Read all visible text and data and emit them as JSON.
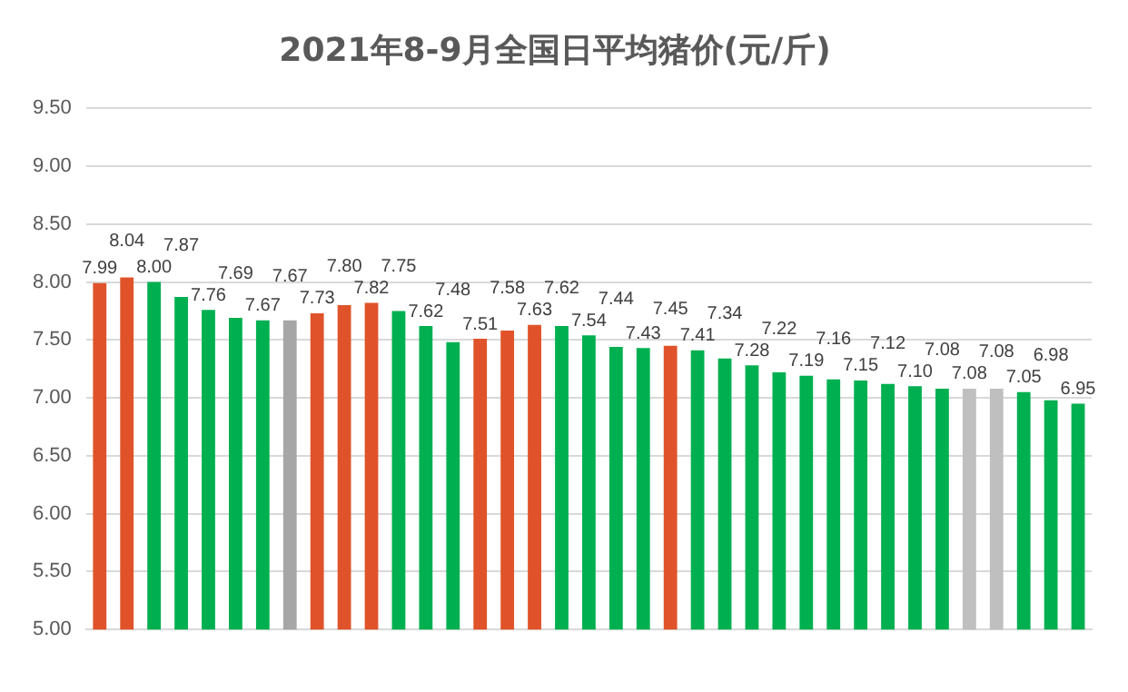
{
  "chart_data": {
    "type": "bar",
    "title": "2021年8-9月全国日平均猪价(元/斤)",
    "categories": [
      null,
      null,
      null,
      null,
      null,
      null,
      null,
      null,
      null,
      null,
      null,
      null,
      null,
      null,
      null,
      null,
      null,
      null,
      null,
      null,
      null,
      null,
      null,
      null,
      null,
      null,
      null,
      null,
      null,
      null,
      null,
      null,
      null,
      null,
      null,
      null,
      null
    ],
    "values": [
      7.99,
      8.04,
      8.0,
      7.87,
      7.76,
      7.69,
      7.67,
      7.67,
      7.73,
      7.8,
      7.82,
      7.75,
      7.62,
      7.48,
      7.51,
      7.58,
      7.63,
      7.62,
      7.54,
      7.44,
      7.43,
      7.45,
      7.41,
      7.34,
      7.28,
      7.22,
      7.19,
      7.16,
      7.15,
      7.12,
      7.1,
      7.08,
      7.08,
      7.08,
      7.05,
      6.98,
      6.95
    ],
    "colors": [
      "#e0532a",
      "#e0532a",
      "#00b050",
      "#00b050",
      "#00b050",
      "#00b050",
      "#00b050",
      "#a6a6a6",
      "#e0532a",
      "#e0532a",
      "#e0532a",
      "#00b050",
      "#00b050",
      "#00b050",
      "#e0532a",
      "#e0532a",
      "#e0532a",
      "#00b050",
      "#00b050",
      "#00b050",
      "#00b050",
      "#e0532a",
      "#00b050",
      "#00b050",
      "#00b050",
      "#00b050",
      "#00b050",
      "#00b050",
      "#00b050",
      "#00b050",
      "#00b050",
      "#00b050",
      "#bfbfbf",
      "#bfbfbf",
      "#00b050",
      "#00b050",
      "#00b050"
    ],
    "ylim": [
      5.0,
      9.5
    ],
    "yticks": [
      {
        "value": 5,
        "label": "5.00"
      },
      {
        "value": 5.5,
        "label": "5.50"
      },
      {
        "value": 6,
        "label": "6.00"
      },
      {
        "value": 6.5,
        "label": "6.50"
      },
      {
        "value": 7,
        "label": "7.00"
      },
      {
        "value": 7.5,
        "label": "7.50"
      },
      {
        "value": 8,
        "label": "8.00"
      },
      {
        "value": 8.5,
        "label": "8.50"
      },
      {
        "value": 9,
        "label": "9.00"
      },
      {
        "value": 9.5,
        "label": "9.50"
      }
    ],
    "value_labels": [
      "7.99",
      "8.04",
      "8.00",
      "7.87",
      "7.76",
      "7.69",
      "7.67",
      "7.67",
      "7.73",
      "7.80",
      "7.82",
      "7.75",
      "7.62",
      "7.48",
      "7.51",
      "7.58",
      "7.63",
      "7.62",
      "7.54",
      "7.44",
      "7.43",
      "7.45",
      "7.41",
      "7.34",
      "7.28",
      "7.22",
      "7.19",
      "7.16",
      "7.15",
      "7.12",
      "7.10",
      "7.08",
      "7.08",
      "7.08",
      "7.05",
      "6.98",
      "6.95"
    ],
    "grid": "y"
  }
}
